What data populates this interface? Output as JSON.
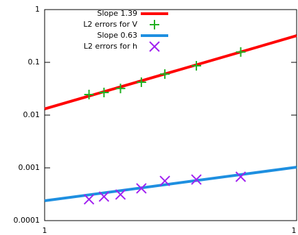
{
  "chart_data": {
    "type": "line",
    "xlog": true,
    "ylog": true,
    "xlim": [
      1,
      10
    ],
    "ylim": [
      0.0001,
      1
    ],
    "xticks": [
      1,
      {
        "value": 10,
        "label": "1"
      }
    ],
    "yticks": [
      0.0001,
      0.001,
      0.01,
      0.1,
      1
    ],
    "legend": "top-right",
    "series": [
      {
        "name": "Slope 1.39",
        "style": "line",
        "color": "#ff0000",
        "x": [
          1,
          10
        ],
        "values": [
          0.0131,
          0.32
        ]
      },
      {
        "name": "L2 errors for V",
        "style": "plus",
        "color": "#22b022",
        "x": [
          1.5,
          1.72,
          2,
          2.42,
          3,
          4,
          6
        ],
        "values": [
          0.0245,
          0.0268,
          0.032,
          0.042,
          0.06,
          0.086,
          0.157
        ]
      },
      {
        "name": "Slope 0.63",
        "style": "line",
        "color": "#1e8fe0",
        "x": [
          1,
          10
        ],
        "values": [
          0.000238,
          0.00103
        ]
      },
      {
        "name": "L2 errors for h",
        "style": "cross",
        "color": "#a020f0",
        "x": [
          1.5,
          1.72,
          2,
          2.42,
          3,
          4,
          6
        ],
        "values": [
          0.000253,
          0.000285,
          0.000312,
          0.000408,
          0.000566,
          0.000601,
          0.000678
        ]
      }
    ]
  }
}
